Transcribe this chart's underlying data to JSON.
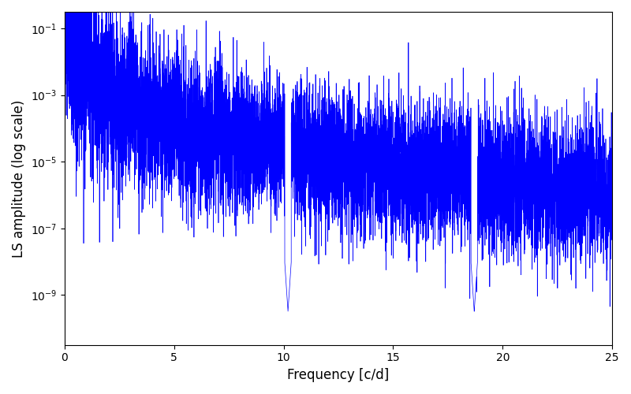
{
  "xlabel": "Frequency [c/d]",
  "ylabel": "LS amplitude (log scale)",
  "xlim": [
    0,
    25
  ],
  "ylim_log_min": -10.5,
  "ylim_log_max": -0.5,
  "line_color": "#0000ff",
  "line_width": 0.5,
  "background_color": "#ffffff",
  "figsize": [
    8.0,
    5.0
  ],
  "dpi": 100,
  "freq_min": 0.0,
  "freq_max": 25.0,
  "n_points": 10000,
  "seed": 7
}
